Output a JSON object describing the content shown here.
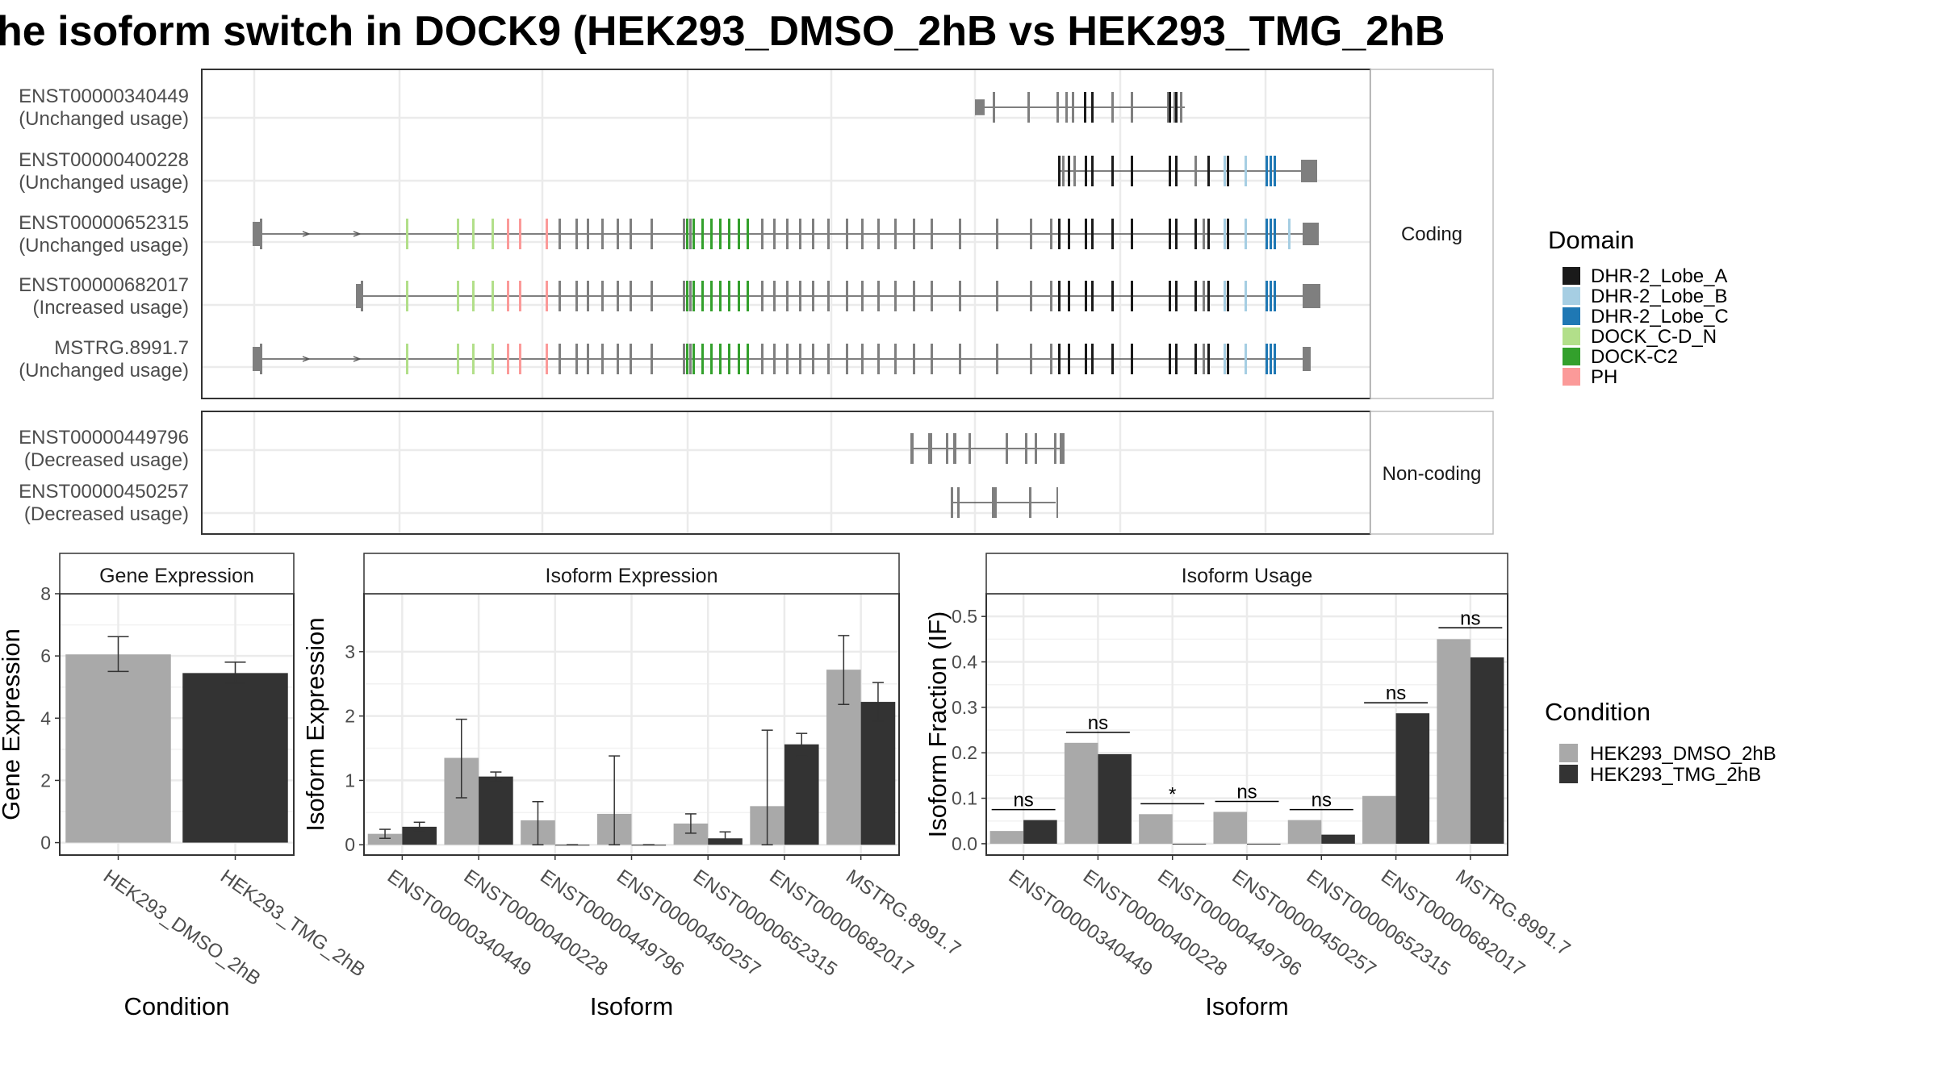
{
  "title": "he isoform switch in DOCK9 (HEK293_DMSO_2hB vs HEK293_TMG_2hB",
  "structure": {
    "strips": [
      "Coding",
      "Non-coding"
    ],
    "coding": [
      {
        "id": "ENST00000340449",
        "usage": "(Unchanged usage)"
      },
      {
        "id": "ENST00000400228",
        "usage": "(Unchanged usage)"
      },
      {
        "id": "ENST00000652315",
        "usage": "(Unchanged usage)"
      },
      {
        "id": "ENST00000682017",
        "usage": "(Increased usage)"
      },
      {
        "id": "MSTRG.8991.7",
        "usage": "(Unchanged usage)"
      }
    ],
    "noncoding": [
      {
        "id": "ENST00000449796",
        "usage": "(Decreased usage)"
      },
      {
        "id": "ENST00000450257",
        "usage": "(Decreased usage)"
      }
    ]
  },
  "legends": {
    "domain_title": "Domain",
    "domain_items": [
      {
        "label": "DHR-2_Lobe_A",
        "color": "#1a1a1a"
      },
      {
        "label": "DHR-2_Lobe_B",
        "color": "#a6cee3"
      },
      {
        "label": "DHR-2_Lobe_C",
        "color": "#1f78b4"
      },
      {
        "label": "DOCK_C-D_N",
        "color": "#b2df8a"
      },
      {
        "label": "DOCK-C2",
        "color": "#33a02c"
      },
      {
        "label": "PH",
        "color": "#fb9a99"
      }
    ],
    "condition_title": "Condition",
    "condition_items": [
      {
        "label": "HEK293_DMSO_2hB",
        "color": "#a9a9a9"
      },
      {
        "label": "HEK293_TMG_2hB",
        "color": "#333333"
      }
    ]
  },
  "chart_data": [
    {
      "type": "bar",
      "title": "Gene Expression",
      "xlabel": "Condition",
      "ylabel": "Gene Expression",
      "categories": [
        "HEK293_DMSO_2hB",
        "HEK293_TMG_2hB"
      ],
      "values": [
        6.05,
        5.45
      ],
      "errors": [
        [
          5.5,
          6.62
        ],
        [
          5.12,
          5.8
        ]
      ],
      "colors": [
        "#a9a9a9",
        "#333333"
      ],
      "ylim": [
        -0.4,
        8.0
      ],
      "yticks": [
        0,
        2,
        4,
        6,
        8
      ]
    },
    {
      "type": "bar",
      "title": "Isoform Expression",
      "xlabel": "Isoform",
      "ylabel": "Isoform Expression",
      "categories": [
        "ENST00000340449",
        "ENST00000400228",
        "ENST00000449796",
        "ENST00000450257",
        "ENST00000652315",
        "ENST00000682017",
        "MSTRG.8991.7"
      ],
      "series": [
        {
          "name": "HEK293_DMSO_2hB",
          "values": [
            0.17,
            1.35,
            0.38,
            0.48,
            0.33,
            0.6,
            2.72
          ],
          "errors": [
            [
              0.1,
              0.24
            ],
            [
              0.73,
              1.95
            ],
            [
              0.0,
              0.67
            ],
            [
              0.0,
              1.38
            ],
            [
              0.18,
              0.48
            ],
            [
              0.0,
              1.78
            ],
            [
              2.18,
              3.25
            ]
          ]
        },
        {
          "name": "HEK293_TMG_2hB",
          "values": [
            0.28,
            1.06,
            0.0,
            0.0,
            0.1,
            1.56,
            2.22
          ],
          "errors": [
            [
              0.22,
              0.35
            ],
            [
              0.98,
              1.13
            ],
            [
              0.0,
              0.0
            ],
            [
              0.0,
              0.0
            ],
            [
              0.02,
              0.2
            ],
            [
              1.38,
              1.73
            ],
            [
              1.92,
              2.52
            ]
          ]
        }
      ],
      "ylim": [
        -0.16,
        3.9
      ],
      "yticks": [
        0,
        1,
        2,
        3
      ]
    },
    {
      "type": "bar",
      "title": "Isoform Usage",
      "xlabel": "Isoform",
      "ylabel": "Isoform Fraction (IF)",
      "categories": [
        "ENST00000340449",
        "ENST00000400228",
        "ENST00000449796",
        "ENST00000450257",
        "ENST00000652315",
        "ENST00000682017",
        "MSTRG.8991.7"
      ],
      "series": [
        {
          "name": "HEK293_DMSO_2hB",
          "values": [
            0.028,
            0.222,
            0.065,
            0.07,
            0.052,
            0.105,
            0.45
          ]
        },
        {
          "name": "HEK293_TMG_2hB",
          "values": [
            0.052,
            0.197,
            0.0,
            0.0,
            0.02,
            0.287,
            0.41
          ]
        }
      ],
      "significance": [
        "ns",
        "ns",
        "*",
        "ns",
        "ns",
        "ns",
        "ns"
      ],
      "sig_y": [
        0.075,
        0.245,
        0.088,
        0.093,
        0.075,
        0.31,
        0.475
      ],
      "ylim": [
        -0.025,
        0.55
      ],
      "yticks": [
        0.0,
        0.1,
        0.2,
        0.3,
        0.4,
        0.5
      ]
    }
  ]
}
